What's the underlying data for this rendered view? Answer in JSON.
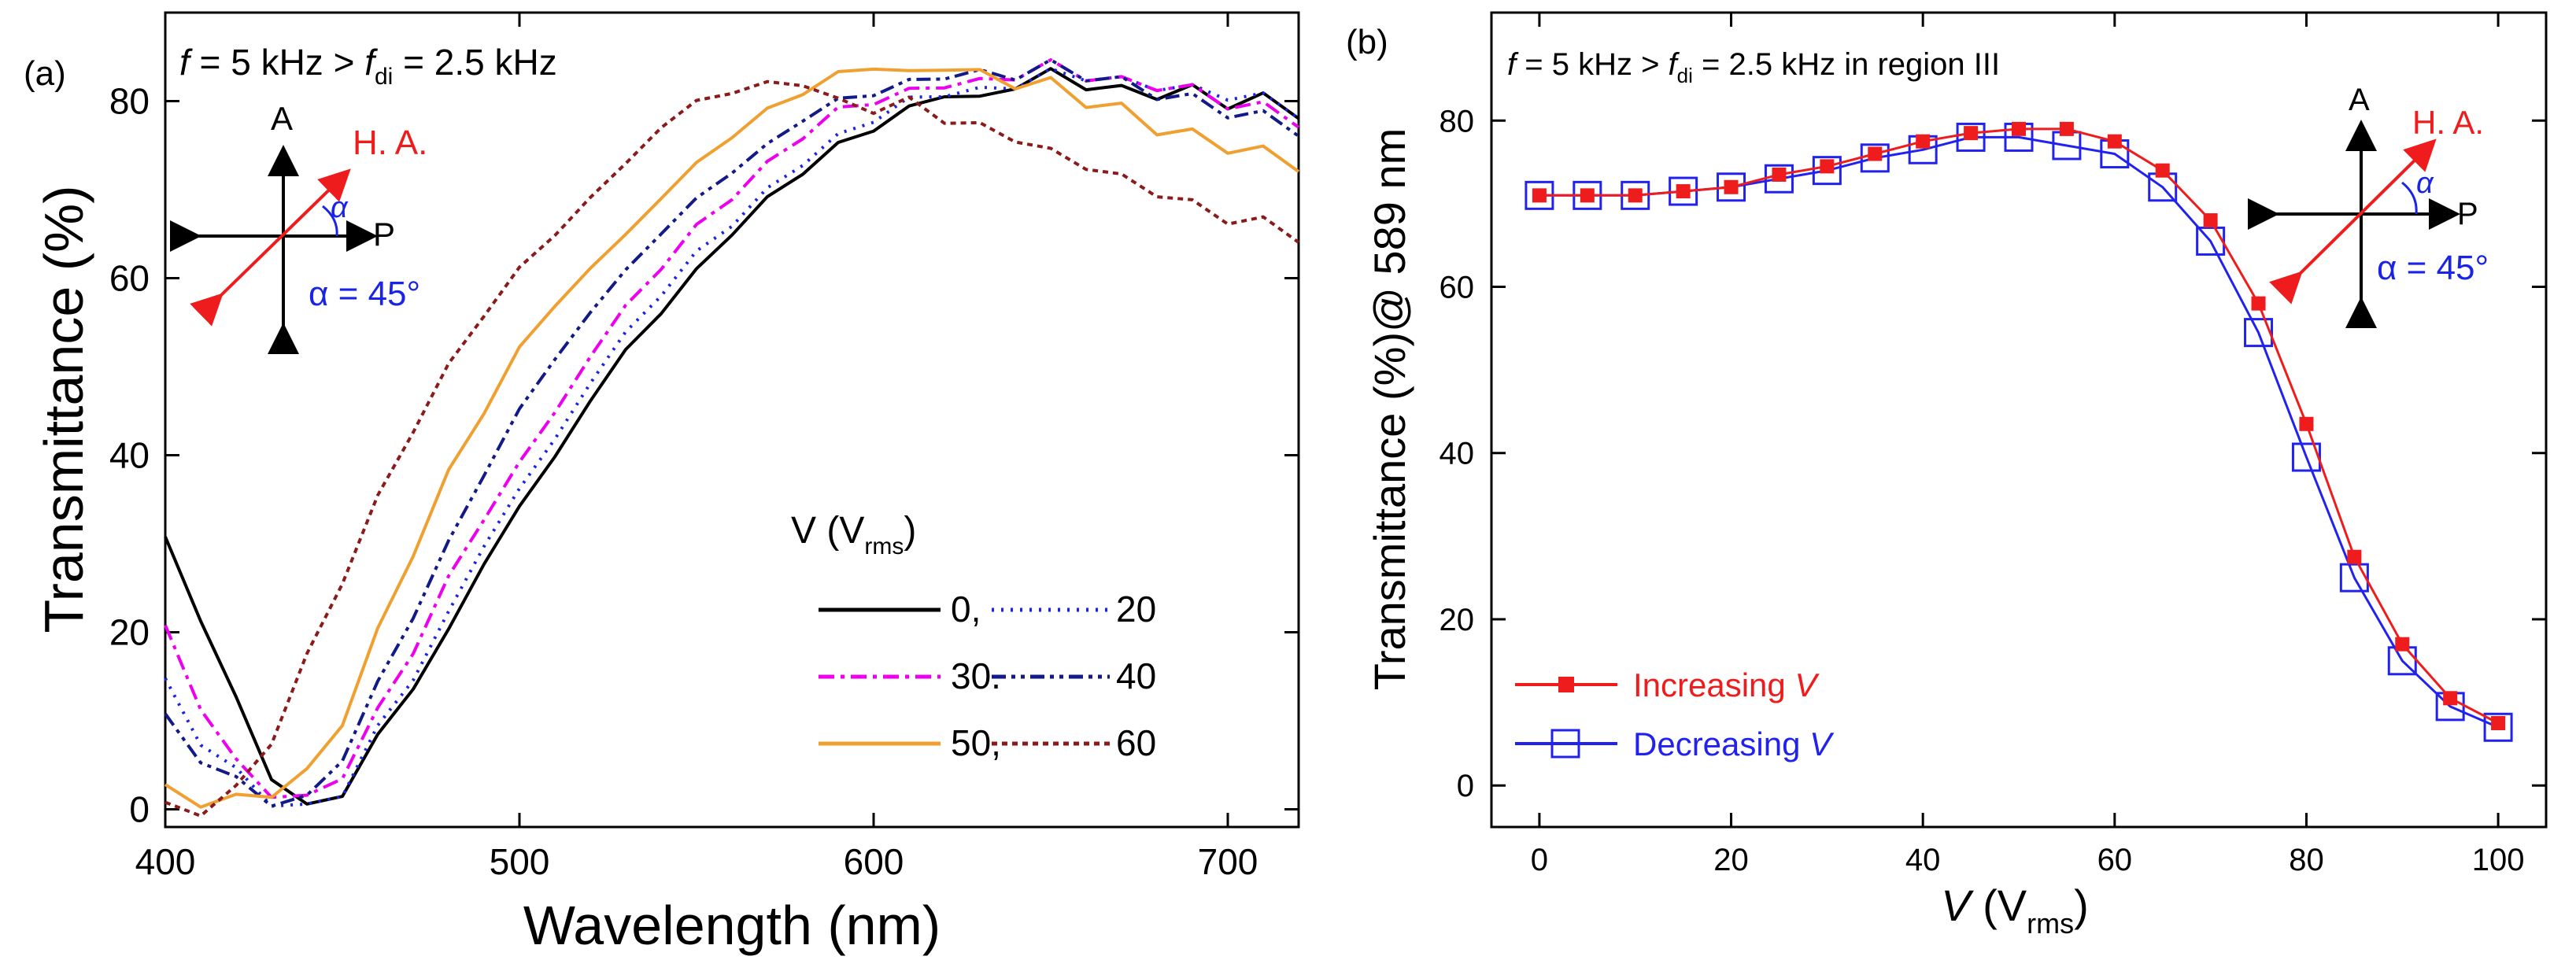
{
  "chart_data": [
    {
      "panel_label": "(a)",
      "type": "line",
      "title": "",
      "annotation": {
        "condition_prefix": "f",
        "condition_eq": " = 5 kHz > ",
        "condition_f": "f",
        "condition_sub": "di",
        "condition_value": " = 2.5 kHz"
      },
      "inset": {
        "A": "A",
        "P": "P",
        "HA": "H. A.",
        "alpha": "α",
        "alpha_value": "α = 45°"
      },
      "xlabel": "Wavelength (nm)",
      "ylabel": "Transmittance (%)",
      "xlim": [
        400,
        720
      ],
      "ylim": [
        -2,
        90
      ],
      "xticks": [
        400,
        500,
        600,
        700
      ],
      "yticks": [
        0,
        20,
        40,
        60,
        80
      ],
      "legend": {
        "title_main": "V (V",
        "title_sub": "rms",
        "title_close": ")",
        "entries": [
          "0,",
          "20",
          "30.",
          "40",
          "50,",
          "60"
        ]
      },
      "series": [
        {
          "name": "0",
          "color": "#000000",
          "dash": "",
          "x": [
            400,
            410,
            420,
            430,
            440,
            450,
            460,
            470,
            480,
            490,
            500,
            510,
            520,
            530,
            540,
            550,
            560,
            570,
            580,
            590,
            600,
            610,
            620,
            630,
            640,
            650,
            660,
            670,
            680,
            690,
            700,
            710,
            720
          ],
          "y": [
            30,
            22,
            12,
            4,
            0,
            2,
            8,
            14,
            20,
            28,
            34,
            40,
            46,
            52,
            56,
            61,
            65,
            69,
            72,
            75,
            77,
            79,
            81,
            80,
            82,
            83,
            82,
            81,
            81,
            81,
            80,
            80,
            79
          ]
        },
        {
          "name": "20",
          "color": "#1a24e6",
          "dash": "3,9",
          "x": [
            400,
            410,
            420,
            430,
            440,
            450,
            460,
            470,
            480,
            490,
            500,
            510,
            520,
            530,
            540,
            550,
            560,
            570,
            580,
            590,
            600,
            610,
            620,
            630,
            640,
            650,
            660,
            670,
            680,
            690,
            700,
            710,
            720
          ],
          "y": [
            14,
            8,
            4,
            1,
            0,
            2,
            9,
            15,
            22,
            30,
            36,
            42,
            48,
            54,
            58,
            63,
            66,
            70,
            73,
            76,
            78,
            80,
            81,
            81,
            82,
            83,
            83,
            82,
            82,
            81,
            81,
            80,
            79
          ]
        },
        {
          "name": "30",
          "color": "#ee00ee",
          "dash": "20,8,5,8",
          "x": [
            400,
            410,
            420,
            430,
            440,
            450,
            460,
            470,
            480,
            490,
            500,
            510,
            520,
            530,
            540,
            550,
            560,
            570,
            580,
            590,
            600,
            610,
            620,
            630,
            640,
            650,
            660,
            670,
            680,
            690,
            700,
            710,
            720
          ],
          "y": [
            20,
            12,
            5,
            2,
            1,
            4,
            11,
            18,
            26,
            33,
            39,
            45,
            51,
            57,
            61,
            66,
            69,
            73,
            76,
            79,
            80,
            81,
            82,
            82,
            83,
            84,
            83,
            82,
            82,
            81,
            80,
            79,
            78
          ]
        },
        {
          "name": "40",
          "color": "#111a88",
          "dash": "18,7,5,7,5,7",
          "x": [
            400,
            410,
            420,
            430,
            440,
            450,
            460,
            470,
            480,
            490,
            500,
            510,
            520,
            530,
            540,
            550,
            560,
            570,
            580,
            590,
            600,
            610,
            620,
            630,
            640,
            650,
            660,
            670,
            680,
            690,
            700,
            710,
            720
          ],
          "y": [
            10,
            6,
            3,
            1,
            1,
            6,
            14,
            22,
            30,
            38,
            45,
            51,
            56,
            61,
            65,
            69,
            72,
            75,
            78,
            80,
            81,
            82,
            83,
            83,
            83,
            84,
            83,
            82,
            81,
            80,
            79,
            78,
            77
          ]
        },
        {
          "name": "50",
          "color": "#f0a030",
          "dash": "",
          "x": [
            400,
            410,
            420,
            430,
            440,
            450,
            460,
            470,
            480,
            490,
            500,
            510,
            520,
            530,
            540,
            550,
            560,
            570,
            580,
            590,
            600,
            610,
            620,
            630,
            640,
            650,
            660,
            670,
            680,
            690,
            700,
            710,
            720
          ],
          "y": [
            2,
            1,
            1,
            2,
            4,
            10,
            20,
            29,
            38,
            45,
            52,
            57,
            61,
            65,
            69,
            73,
            76,
            79,
            81,
            83,
            84,
            83,
            84,
            83,
            82,
            82,
            80,
            79,
            77,
            76,
            75,
            74,
            73
          ]
        },
        {
          "name": "60",
          "color": "#8b1a1a",
          "dash": "7,6",
          "x": [
            400,
            410,
            420,
            430,
            440,
            450,
            460,
            470,
            480,
            490,
            500,
            510,
            520,
            530,
            540,
            550,
            560,
            570,
            580,
            590,
            600,
            610,
            620,
            630,
            640,
            650,
            660,
            670,
            680,
            690,
            700,
            710,
            720
          ],
          "y": [
            0,
            0,
            2,
            8,
            17,
            26,
            35,
            43,
            50,
            56,
            61,
            65,
            69,
            73,
            77,
            80,
            81,
            82,
            82,
            80,
            79,
            80,
            78,
            77,
            76,
            74,
            73,
            71,
            70,
            68,
            67,
            66,
            65
          ]
        }
      ]
    },
    {
      "panel_label": "(b)",
      "type": "line",
      "annotation": {
        "condition_prefix": "f",
        "condition_eq": " = 5 kHz > ",
        "condition_f": "f",
        "condition_sub": "di",
        "condition_value": " = 2.5 kHz in region III"
      },
      "inset": {
        "A": "A",
        "P": "P",
        "HA": "H. A.",
        "alpha": "α",
        "alpha_value": "α = 45°"
      },
      "xlabel_v": "V",
      "xlabel_rest": " (V",
      "xlabel_sub": "rms",
      "xlabel_close": ")",
      "ylabel": "Transmittance (%)@ 589 nm",
      "xlim": [
        -5,
        105
      ],
      "ylim": [
        -5,
        93
      ],
      "xticks": [
        0,
        20,
        40,
        60,
        80,
        100
      ],
      "yticks": [
        0,
        20,
        40,
        60,
        80
      ],
      "legend": {
        "increasing_text": "Increasing ",
        "increasing_v": "V",
        "decreasing_text": "Decreasing ",
        "decreasing_v": "V"
      },
      "series": [
        {
          "name": "Increasing V",
          "color": "#ee1c1c",
          "marker": "filled-square",
          "x": [
            0,
            5,
            10,
            15,
            20,
            25,
            30,
            35,
            40,
            45,
            50,
            55,
            60,
            65,
            70,
            75,
            80,
            85,
            90,
            95,
            100
          ],
          "y": [
            71,
            71,
            71,
            71.5,
            72,
            73.5,
            74.5,
            76,
            77.5,
            78.5,
            79,
            79,
            77.5,
            74,
            68,
            58,
            43.5,
            27.5,
            17,
            10.5,
            7.5
          ]
        },
        {
          "name": "Decreasing V",
          "color": "#2222ee",
          "marker": "open-square",
          "x": [
            0,
            5,
            10,
            15,
            20,
            25,
            30,
            35,
            40,
            45,
            50,
            55,
            60,
            65,
            70,
            75,
            80,
            85,
            90,
            95,
            100
          ],
          "y": [
            71,
            71,
            71,
            71.5,
            72,
            73,
            74,
            75.5,
            76.5,
            78,
            78,
            77,
            76,
            72,
            65.5,
            54.5,
            39.5,
            25,
            15,
            9.5,
            7
          ]
        }
      ]
    }
  ]
}
